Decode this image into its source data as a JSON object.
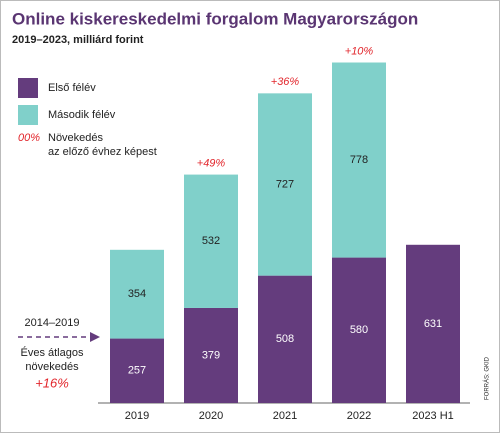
{
  "chart_data": {
    "type": "stacked_bar",
    "title": "Online kiskereskedelmi forgalom Magyarországon",
    "subtitle": "2019–2023, milliárd forint",
    "categories": [
      "2019",
      "2020",
      "2021",
      "2022",
      "2023 H1"
    ],
    "series": [
      {
        "name": "Első félév",
        "color": "#643c7d",
        "values": [
          257,
          379,
          508,
          580,
          631
        ]
      },
      {
        "name": "Második félév",
        "color": "#80d0ca",
        "values": [
          354,
          532,
          727,
          778,
          null
        ]
      }
    ],
    "ylim": [
      0,
      1360
    ],
    "growth": {
      "name": "Növekedés az előző évhez képest",
      "legend_symbol": "00%",
      "color": "#e2262c",
      "values": [
        null,
        49,
        36,
        10,
        null
      ],
      "value_labels": [
        null,
        "+49%",
        "+36%",
        "+10%",
        null
      ]
    },
    "annotation": {
      "period": "2014–2019",
      "lines": [
        "Éves átlagos",
        "növekedés"
      ],
      "value": 16,
      "value_label": "+16%"
    },
    "source": "FORRÁS: GKID"
  }
}
